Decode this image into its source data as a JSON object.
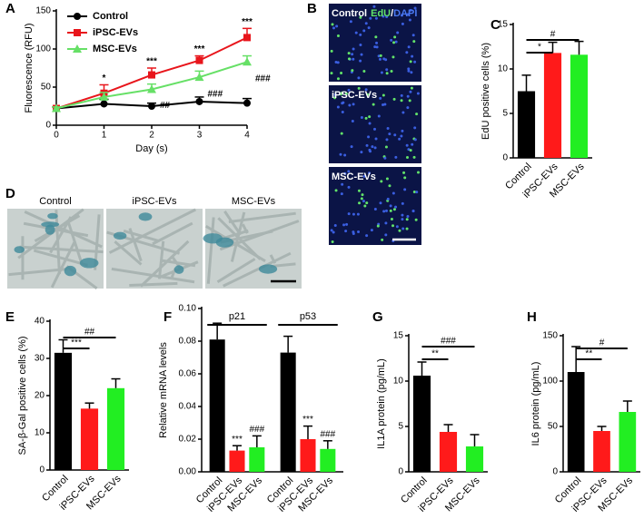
{
  "chart_data": [
    {
      "type": "line",
      "letter": "A",
      "xlabel": "Day (s)",
      "ylabel": "Fluorescence (RFU)",
      "x": [
        0,
        1,
        2,
        3,
        4
      ],
      "xlim": [
        0,
        4
      ],
      "xticks": [
        0,
        1,
        2,
        3,
        4
      ],
      "ylim": [
        0,
        150
      ],
      "yticks": [
        0,
        50,
        100,
        150
      ],
      "legend": "upper left",
      "series": [
        {
          "name": "Control",
          "color": "#000000",
          "marker": "circle",
          "values": [
            22,
            28,
            25,
            31,
            29
          ],
          "errors": [
            2,
            6,
            4,
            6,
            6
          ],
          "significance": [
            null,
            null,
            null,
            null,
            null
          ]
        },
        {
          "name": "iPSC-EVs",
          "color": "#e8151b",
          "marker": "square",
          "values": [
            22,
            42,
            66,
            85,
            115
          ],
          "errors": [
            2,
            11,
            9,
            6,
            12
          ],
          "significance": [
            null,
            "*",
            "***",
            "***",
            "***"
          ]
        },
        {
          "name": "MSC-EVs",
          "color": "#66e066",
          "marker": "triangle",
          "values": [
            22,
            37,
            47,
            63,
            83
          ],
          "errors": [
            2,
            6,
            7,
            8,
            8
          ],
          "significance": [
            null,
            null,
            "##",
            "###",
            "###"
          ]
        }
      ]
    },
    {
      "type": "bar",
      "letter": "C",
      "ylabel": "EdU positive cells (%)",
      "categories": [
        "Control",
        "iPSC-EVs",
        "MSC-EVs"
      ],
      "values": [
        7.5,
        11.8,
        11.6
      ],
      "errors": [
        1.8,
        1.2,
        1.5
      ],
      "colors": [
        "#000000",
        "#ff1a1a",
        "#22ee22"
      ],
      "ylim": [
        0,
        15
      ],
      "yticks": [
        0,
        5,
        10,
        15
      ],
      "annotations": [
        "*",
        "#"
      ]
    },
    {
      "type": "bar",
      "letter": "E",
      "ylabel": "SA-β-Gal positive cells (%)",
      "categories": [
        "Control",
        "iPSC-EVs",
        "MSC-EVs"
      ],
      "values": [
        31.5,
        16.5,
        22
      ],
      "errors": [
        3.5,
        1.5,
        2.5
      ],
      "colors": [
        "#000000",
        "#ff1a1a",
        "#22ee22"
      ],
      "ylim": [
        0,
        40
      ],
      "yticks": [
        0,
        10,
        20,
        30,
        40
      ],
      "annotations": [
        "***",
        "##"
      ]
    },
    {
      "type": "grouped_bar",
      "letter": "F",
      "ylabel": "Relative mRNA levels",
      "categories": [
        "p21",
        "p53"
      ],
      "ylim": [
        0,
        0.1
      ],
      "yticks": [
        {
          "value": 0,
          "label": "0.00"
        },
        {
          "value": 0.02,
          "label": "0.02"
        },
        {
          "value": 0.04,
          "label": "0.04"
        },
        {
          "value": 0.06,
          "label": "0.06"
        },
        {
          "value": 0.08,
          "label": "0.08"
        },
        {
          "value": 0.1,
          "label": "0.10"
        }
      ],
      "series": [
        {
          "name": "Control",
          "color": "#000000",
          "values": [
            0.081,
            0.073
          ],
          "errors": [
            0.01,
            0.01
          ],
          "significance": [
            null,
            null
          ]
        },
        {
          "name": "iPSC-EVs",
          "color": "#ff1a1a",
          "values": [
            0.013,
            0.02
          ],
          "errors": [
            0.003,
            0.008
          ],
          "significance": [
            "***",
            "***"
          ]
        },
        {
          "name": "MSC-EVs",
          "color": "#22ee22",
          "values": [
            0.015,
            0.014
          ],
          "errors": [
            0.007,
            0.005
          ],
          "significance": [
            "###",
            "###"
          ]
        }
      ]
    },
    {
      "type": "bar",
      "letter": "G",
      "ylabel": "IL1A protein (pg/mL)",
      "categories": [
        "Control",
        "iPSC-EVs",
        "MSC-EVs"
      ],
      "values": [
        10.6,
        4.4,
        2.8
      ],
      "errors": [
        1.5,
        0.8,
        1.3
      ],
      "colors": [
        "#000000",
        "#ff1a1a",
        "#22ee22"
      ],
      "ylim": [
        0,
        15
      ],
      "yticks": [
        0,
        5,
        10,
        15
      ],
      "annotations": [
        "**",
        "###"
      ]
    },
    {
      "type": "bar",
      "letter": "H",
      "ylabel": "IL6 protein (pg/mL)",
      "categories": [
        "Control",
        "iPSC-EVs",
        "MSC-EVs"
      ],
      "values": [
        110,
        45,
        66
      ],
      "errors": [
        28,
        5,
        12
      ],
      "colors": [
        "#000000",
        "#ff1a1a",
        "#22ee22"
      ],
      "ylim": [
        0,
        150
      ],
      "yticks": [
        0,
        50,
        100,
        150
      ],
      "annotations": [
        "**",
        "#"
      ]
    }
  ],
  "image_panels": [
    {
      "letter": "B",
      "panels": [
        {
          "label": "Control",
          "stain": [
            "EdU",
            "/",
            "DAPI"
          ]
        },
        {
          "label": "iPSC-EVs"
        },
        {
          "label": "MSC-EVs"
        }
      ]
    },
    {
      "letter": "D",
      "panels": [
        {
          "label": "Control"
        },
        {
          "label": "iPSC-EVs"
        },
        {
          "label": "MSC-EVs"
        }
      ]
    }
  ]
}
